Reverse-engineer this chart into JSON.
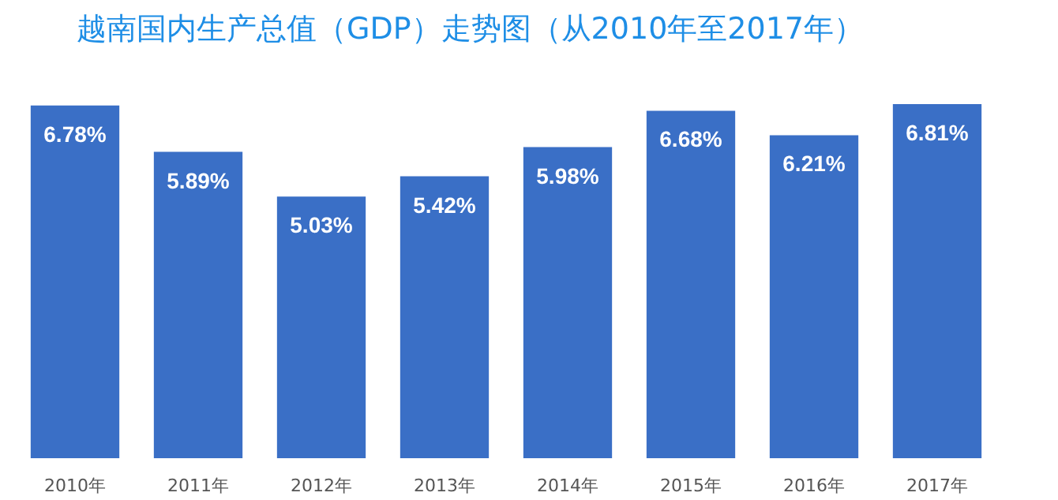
{
  "chart_data": {
    "type": "bar",
    "title": "越南国内生产总值（GDP）走势图（从2010年至2017年）",
    "categories": [
      "2010年",
      "2011年",
      "2012年",
      "2013年",
      "2014年",
      "2015年",
      "2016年",
      "2017年"
    ],
    "values": [
      6.78,
      5.89,
      5.03,
      5.42,
      5.98,
      6.68,
      6.21,
      6.81
    ],
    "value_labels": [
      "6.78%",
      "5.89%",
      "5.03%",
      "5.42%",
      "5.98%",
      "6.68%",
      "6.21%",
      "6.81%"
    ],
    "color": "#3a6fc6"
  }
}
